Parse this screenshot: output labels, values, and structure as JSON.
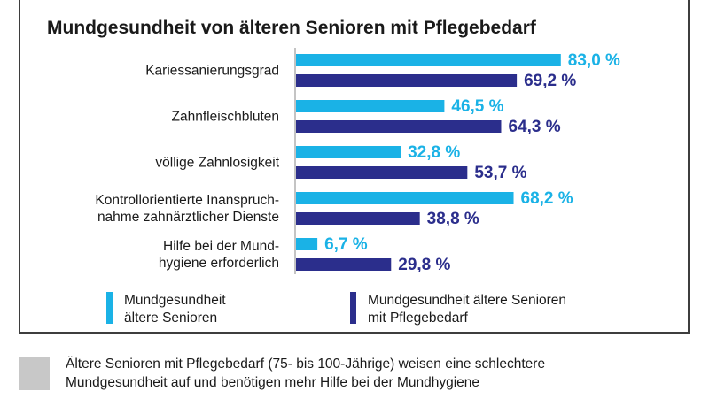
{
  "chart_data": {
    "type": "bar",
    "orientation": "horizontal",
    "title": "Mundgesundheit von älteren Senioren mit Pflegebedarf",
    "categories": [
      "Kariessanierungsgrad",
      "Zahnfleischbluten",
      "völlige Zahnlosigkeit",
      "Kontrollorientierte Inanspruch-\nnahme zahnärztlicher Dienste",
      "Hilfe bei der Mund-\nhygiene erforderlich"
    ],
    "series": [
      {
        "name": "Mundgesundheit\nältere Senioren",
        "color": "#1ab2e6",
        "values": [
          83.0,
          46.5,
          32.8,
          68.2,
          6.7
        ],
        "labels": [
          "83,0 %",
          "46,5 %",
          "32,8 %",
          "68,2 %",
          "6,7 %"
        ]
      },
      {
        "name": "Mundgesundheit ältere Senioren\nmit Pflegebedarf",
        "color": "#2b2e8c",
        "values": [
          69.2,
          64.3,
          53.7,
          38.8,
          29.8
        ],
        "labels": [
          "69,2 %",
          "64,3 %",
          "53,7 %",
          "38,8 %",
          "29,8 %"
        ]
      }
    ],
    "xlim": [
      0,
      100
    ],
    "grid": false,
    "legend_position": "bottom"
  },
  "note": {
    "text": "Ältere Senioren mit Pflegebedarf (75- bis 100-Jährige) weisen eine schlechtere\nMundgesundheit auf und benötigen mehr Hilfe bei der Mundhygiene"
  }
}
